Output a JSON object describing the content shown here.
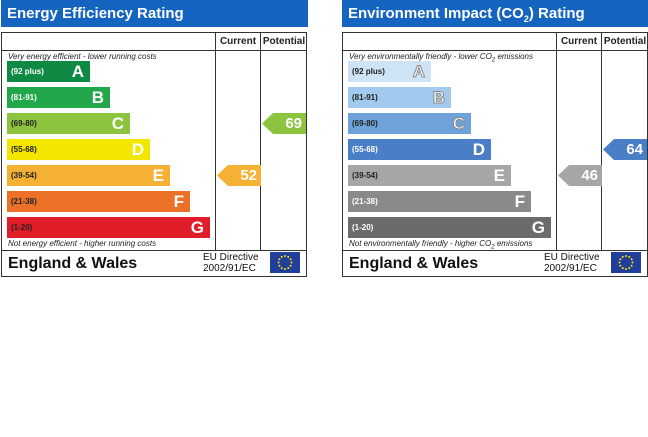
{
  "charts": [
    {
      "title": "Energy Efficiency Rating",
      "col_current": "Current",
      "col_potential": "Potential",
      "top_note": "Very energy efficient - lower running costs",
      "bottom_note": "Not energy efficient - higher running costs",
      "footer": "England & Wales",
      "eu_line1": "EU Directive",
      "eu_line2": "2002/91/EC",
      "bands": [
        {
          "range": "(92 plus)",
          "letter": "A",
          "color": "#0f8a44",
          "range_color": "#ffffff"
        },
        {
          "range": "(81-91)",
          "letter": "B",
          "color": "#22a84a",
          "range_color": "#ffffff"
        },
        {
          "range": "(69-80)",
          "letter": "C",
          "color": "#8dc43f",
          "range_color": "#222222"
        },
        {
          "range": "(55-68)",
          "letter": "D",
          "color": "#f3e600",
          "range_color": "#222222"
        },
        {
          "range": "(39-54)",
          "letter": "E",
          "color": "#f5b133",
          "range_color": "#222222"
        },
        {
          "range": "(21-38)",
          "letter": "F",
          "color": "#ec7128",
          "range_color": "#222222"
        },
        {
          "range": "(1-20)",
          "letter": "G",
          "color": "#e21d2a",
          "range_color": "#222222"
        }
      ],
      "current": {
        "value": "52",
        "color": "#f5b133"
      },
      "potential": {
        "value": "69",
        "color": "#8dc43f"
      }
    },
    {
      "title_main": "Environment Impact (CO",
      "title_sub": "2",
      "title_end": ") Rating",
      "col_current": "Current",
      "col_potential": "Potential",
      "top_note_main": "Very environmentally friendly - lower CO",
      "top_note_sub": "2",
      "top_note_end": " emissions",
      "bottom_note_main": "Not environmentally friendly - higher CO",
      "bottom_note_sub": "2",
      "bottom_note_end": " emissions",
      "footer": "England & Wales",
      "eu_line1": "EU Directive",
      "eu_line2": "2002/91/EC",
      "bands": [
        {
          "range": "(92 plus)",
          "letter": "A",
          "color": "#cfe3f7",
          "range_color": "#222222"
        },
        {
          "range": "(81-91)",
          "letter": "B",
          "color": "#a2c9ee",
          "range_color": "#222222"
        },
        {
          "range": "(69-80)",
          "letter": "C",
          "color": "#6ea2d9",
          "range_color": "#222222"
        },
        {
          "range": "(55-68)",
          "letter": "D",
          "color": "#4a7fc7",
          "range_color": "#ffffff"
        },
        {
          "range": "(39-54)",
          "letter": "E",
          "color": "#a6a6a6",
          "range_color": "#222222"
        },
        {
          "range": "(21-38)",
          "letter": "F",
          "color": "#8a8a8a",
          "range_color": "#ffffff"
        },
        {
          "range": "(1-20)",
          "letter": "G",
          "color": "#6b6b6b",
          "range_color": "#ffffff"
        }
      ],
      "current": {
        "value": "46",
        "color": "#a6a6a6"
      },
      "potential": {
        "value": "64",
        "color": "#4a7fc7"
      }
    }
  ],
  "chart_data": [
    {
      "type": "table",
      "title": "Energy Efficiency Rating",
      "categories": [
        "A",
        "B",
        "C",
        "D",
        "E",
        "F",
        "G"
      ],
      "ranges": [
        "92 plus",
        "81-91",
        "69-80",
        "55-68",
        "39-54",
        "21-38",
        "1-20"
      ],
      "current": 52,
      "potential": 69
    },
    {
      "type": "table",
      "title": "Environment Impact (CO2) Rating",
      "categories": [
        "A",
        "B",
        "C",
        "D",
        "E",
        "F",
        "G"
      ],
      "ranges": [
        "92 plus",
        "81-91",
        "69-80",
        "55-68",
        "39-54",
        "21-38",
        "1-20"
      ],
      "current": 46,
      "potential": 64
    }
  ]
}
